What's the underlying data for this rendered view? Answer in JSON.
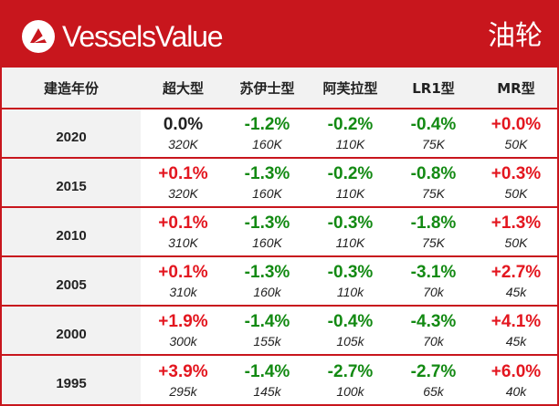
{
  "header": {
    "brand": "VesselsValue",
    "vessel_type": "油轮",
    "brand_color": "#c8161d"
  },
  "table": {
    "year_header": "建造年份",
    "columns": [
      "超大型",
      "苏伊士型",
      "阿芙拉型",
      "LR1型",
      "MR型"
    ],
    "rows": [
      {
        "year": "2020",
        "cells": [
          {
            "change": "0.0%",
            "value": "320K"
          },
          {
            "change": "-1.2%",
            "value": "160K"
          },
          {
            "change": "-0.2%",
            "value": "110K"
          },
          {
            "change": "-0.4%",
            "value": "75K"
          },
          {
            "change": "+0.0%",
            "value": "50K"
          }
        ]
      },
      {
        "year": "2015",
        "cells": [
          {
            "change": "+0.1%",
            "value": "320K"
          },
          {
            "change": "-1.3%",
            "value": "160K"
          },
          {
            "change": "-0.2%",
            "value": "110K"
          },
          {
            "change": "-0.8%",
            "value": "75K"
          },
          {
            "change": "+0.3%",
            "value": "50K"
          }
        ]
      },
      {
        "year": "2010",
        "cells": [
          {
            "change": "+0.1%",
            "value": "310K"
          },
          {
            "change": "-1.3%",
            "value": "160K"
          },
          {
            "change": "-0.3%",
            "value": "110K"
          },
          {
            "change": "-1.8%",
            "value": "75K"
          },
          {
            "change": "+1.3%",
            "value": "50K"
          }
        ]
      },
      {
        "year": "2005",
        "cells": [
          {
            "change": "+0.1%",
            "value": "310k"
          },
          {
            "change": "-1.3%",
            "value": "160k"
          },
          {
            "change": "-0.3%",
            "value": "110k"
          },
          {
            "change": "-3.1%",
            "value": "70k"
          },
          {
            "change": "+2.7%",
            "value": "45k"
          }
        ]
      },
      {
        "year": "2000",
        "cells": [
          {
            "change": "+1.9%",
            "value": "300k"
          },
          {
            "change": "-1.4%",
            "value": "155k"
          },
          {
            "change": "-0.4%",
            "value": "105k"
          },
          {
            "change": "-4.3%",
            "value": "70k"
          },
          {
            "change": "+4.1%",
            "value": "45k"
          }
        ]
      },
      {
        "year": "1995",
        "cells": [
          {
            "change": "+3.9%",
            "value": "295k"
          },
          {
            "change": "-1.4%",
            "value": "145k"
          },
          {
            "change": "-2.7%",
            "value": "100k"
          },
          {
            "change": "-2.7%",
            "value": "65k"
          },
          {
            "change": "+6.0%",
            "value": "40k"
          }
        ]
      }
    ],
    "colors": {
      "positive": "#e3161f",
      "negative": "#138a13",
      "neutral": "#222222"
    }
  },
  "chart_data": {
    "type": "table",
    "x_header": "建造年份",
    "columns": [
      "超大型",
      "苏伊士型",
      "阿芙拉型",
      "LR1型",
      "MR型"
    ],
    "years": [
      "2020",
      "2015",
      "2010",
      "2005",
      "2000",
      "1995"
    ],
    "change_pct": [
      [
        0.0,
        -1.2,
        -0.2,
        -0.4,
        0.0
      ],
      [
        0.1,
        -1.3,
        -0.2,
        -0.8,
        0.3
      ],
      [
        0.1,
        -1.3,
        -0.3,
        -1.8,
        1.3
      ],
      [
        0.1,
        -1.3,
        -0.3,
        -3.1,
        2.7
      ],
      [
        1.9,
        -1.4,
        -0.4,
        -4.3,
        4.1
      ],
      [
        3.9,
        -1.4,
        -2.7,
        -2.7,
        6.0
      ]
    ],
    "values": [
      [
        "320K",
        "160K",
        "110K",
        "75K",
        "50K"
      ],
      [
        "320K",
        "160K",
        "110K",
        "75K",
        "50K"
      ],
      [
        "310K",
        "160K",
        "110K",
        "75K",
        "50K"
      ],
      [
        "310k",
        "160k",
        "110k",
        "70k",
        "45k"
      ],
      [
        "300k",
        "155k",
        "105k",
        "70k",
        "45k"
      ],
      [
        "295k",
        "145k",
        "100k",
        "65k",
        "40k"
      ]
    ]
  }
}
